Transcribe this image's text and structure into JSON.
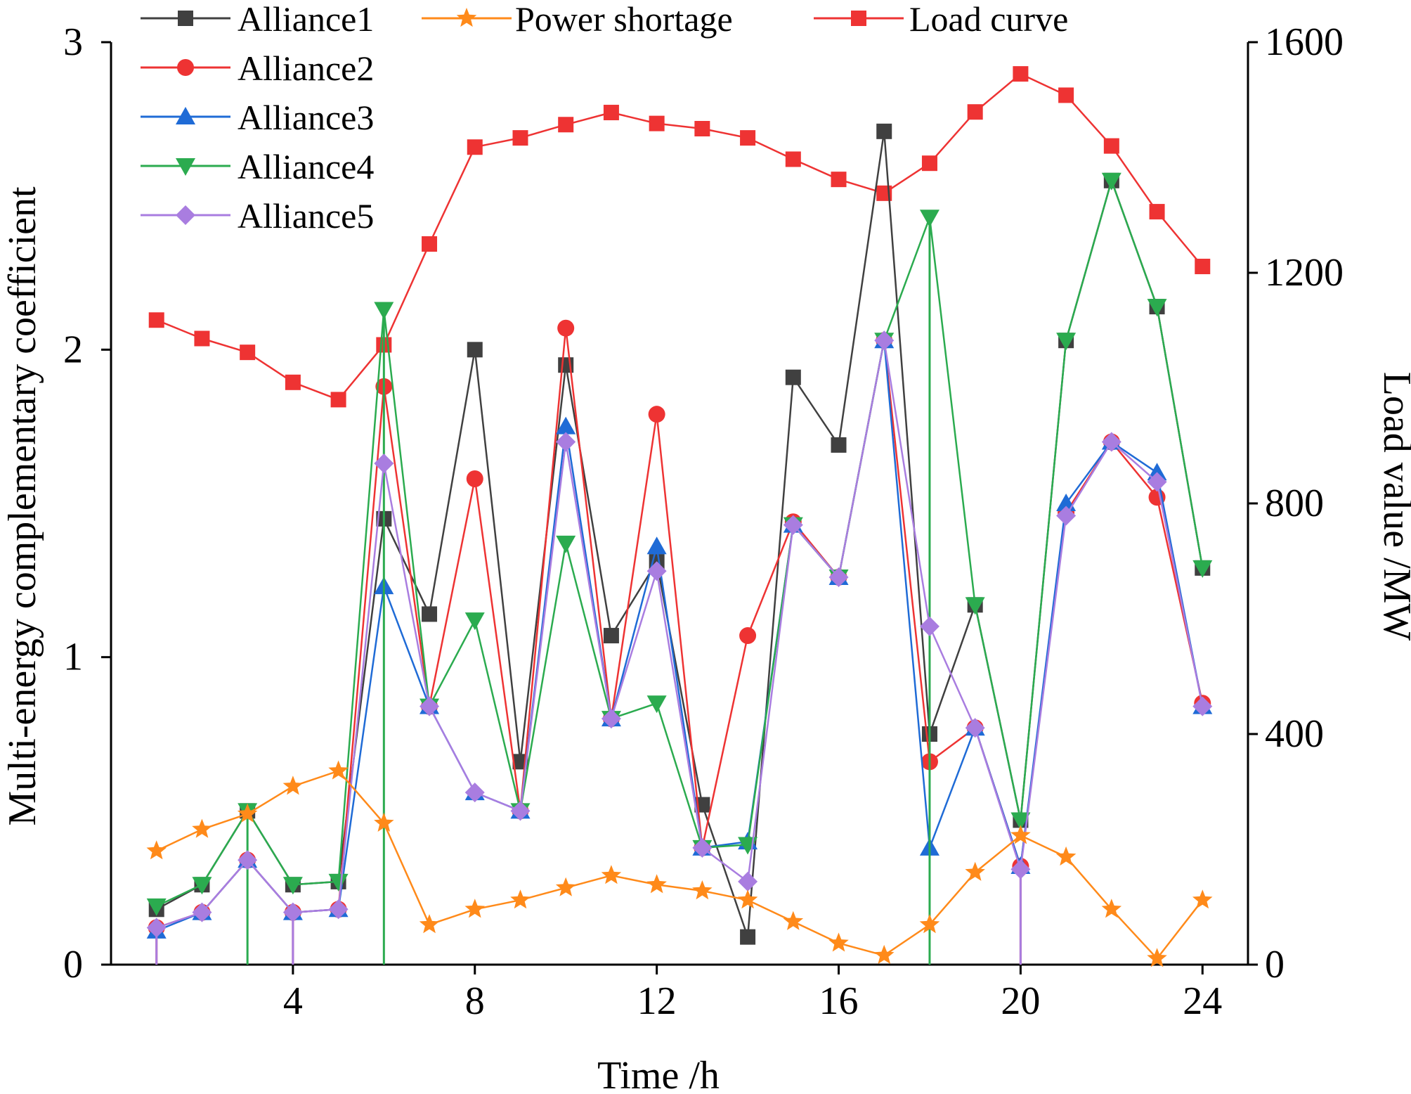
{
  "chart_data": {
    "type": "line",
    "title": "",
    "xlabel": "Time /h",
    "ylabel_left": "Multi-energy complementary coefficient",
    "ylabel_right": "Load value /MW",
    "xlim": [
      0,
      25
    ],
    "ylim_left": [
      0,
      3
    ],
    "ylim_right": [
      0,
      1600
    ],
    "x_ticks": [
      4,
      8,
      12,
      16,
      20,
      24
    ],
    "y_left_ticks": [
      0,
      1,
      2,
      3
    ],
    "y_right_ticks": [
      0,
      400,
      800,
      1200,
      1600
    ],
    "grid": false,
    "legend_position": "top",
    "x": [
      1,
      2,
      3,
      4,
      5,
      6,
      7,
      8,
      9,
      10,
      11,
      12,
      13,
      14,
      15,
      16,
      17,
      18,
      19,
      20,
      21,
      22,
      23,
      24
    ],
    "series": [
      {
        "name": "Alliance1",
        "axis": "left",
        "color": "#404040",
        "marker": "square",
        "values": [
          0.18,
          0.26,
          0.5,
          0.26,
          0.27,
          1.45,
          1.14,
          2.0,
          0.66,
          1.95,
          1.07,
          1.31,
          0.52,
          0.09,
          1.91,
          1.69,
          2.71,
          0.75,
          1.17,
          0.47,
          2.03,
          2.55,
          2.14,
          1.29
        ],
        "drops": []
      },
      {
        "name": "Alliance2",
        "axis": "left",
        "color": "#ee3333",
        "marker": "circle",
        "values": [
          0.12,
          0.17,
          0.34,
          0.17,
          0.18,
          1.88,
          0.84,
          1.58,
          0.5,
          2.07,
          0.8,
          1.79,
          0.38,
          1.07,
          1.44,
          1.26,
          2.03,
          0.66,
          0.77,
          0.32,
          1.47,
          1.7,
          1.52,
          0.85
        ],
        "drops": [
          1,
          4,
          20
        ]
      },
      {
        "name": "Alliance3",
        "axis": "left",
        "color": "#1f6bd6",
        "marker": "triangle-up",
        "values": [
          0.11,
          0.17,
          0.34,
          0.17,
          0.18,
          1.23,
          0.84,
          0.56,
          0.5,
          1.75,
          0.8,
          1.36,
          0.38,
          0.4,
          1.43,
          1.26,
          2.03,
          0.38,
          0.77,
          0.32,
          1.5,
          1.7,
          1.6,
          0.84
        ],
        "drops": []
      },
      {
        "name": "Alliance4",
        "axis": "left",
        "color": "#2bab4f",
        "marker": "triangle-down",
        "values": [
          0.19,
          0.26,
          0.5,
          0.26,
          0.27,
          2.13,
          0.84,
          1.12,
          0.5,
          1.37,
          0.8,
          0.85,
          0.38,
          0.39,
          1.43,
          1.26,
          2.03,
          2.43,
          1.17,
          0.47,
          2.03,
          2.55,
          2.14,
          1.29
        ],
        "drops": [
          3,
          6,
          18
        ]
      },
      {
        "name": "Alliance5",
        "axis": "left",
        "color": "#a97de0",
        "marker": "diamond",
        "values": [
          0.12,
          0.17,
          0.34,
          0.17,
          0.18,
          1.63,
          0.84,
          0.56,
          0.5,
          1.7,
          0.8,
          1.28,
          0.38,
          0.27,
          1.43,
          1.26,
          2.03,
          1.1,
          0.77,
          0.31,
          1.46,
          1.7,
          1.57,
          0.84
        ],
        "drops": [
          1,
          4,
          20
        ]
      },
      {
        "name": "Power shortage",
        "axis": "left",
        "color": "#ff8a1a",
        "marker": "star",
        "values": [
          0.37,
          0.44,
          0.49,
          0.58,
          0.63,
          0.46,
          0.13,
          0.18,
          0.21,
          0.25,
          0.29,
          0.26,
          0.24,
          0.21,
          0.14,
          0.07,
          0.03,
          0.13,
          0.3,
          0.42,
          0.35,
          0.18,
          0.02,
          0.21
        ],
        "drops": []
      },
      {
        "name": "Load curve",
        "axis": "right",
        "color": "#ee3333",
        "marker": "square",
        "values": [
          1118,
          1086,
          1062,
          1010,
          980,
          1075,
          1250,
          1418,
          1434,
          1457,
          1478,
          1459,
          1450,
          1434,
          1397,
          1362,
          1338,
          1390,
          1479,
          1545,
          1508,
          1420,
          1306,
          1211
        ],
        "drops": []
      }
    ]
  },
  "legend": {
    "alliance1": "Alliance1",
    "alliance2": "Alliance2",
    "alliance3": "Alliance3",
    "alliance4": "Alliance4",
    "alliance5": "Alliance5",
    "power_shortage": "Power shortage",
    "load_curve": "Load curve"
  }
}
